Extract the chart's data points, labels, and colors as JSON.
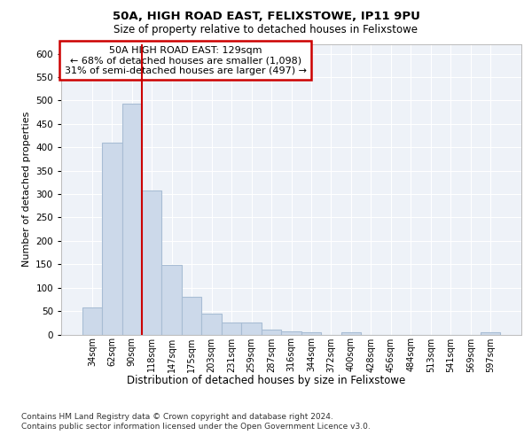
{
  "title1": "50A, HIGH ROAD EAST, FELIXSTOWE, IP11 9PU",
  "title2": "Size of property relative to detached houses in Felixstowe",
  "xlabel": "Distribution of detached houses by size in Felixstowe",
  "ylabel": "Number of detached properties",
  "categories": [
    "34sqm",
    "62sqm",
    "90sqm",
    "118sqm",
    "147sqm",
    "175sqm",
    "203sqm",
    "231sqm",
    "259sqm",
    "287sqm",
    "316sqm",
    "344sqm",
    "372sqm",
    "400sqm",
    "428sqm",
    "456sqm",
    "484sqm",
    "513sqm",
    "541sqm",
    "569sqm",
    "597sqm"
  ],
  "values": [
    57,
    410,
    493,
    307,
    149,
    81,
    44,
    25,
    25,
    11,
    7,
    5,
    0,
    5,
    0,
    0,
    0,
    0,
    0,
    0,
    4
  ],
  "bar_color": "#ccd9ea",
  "bar_edge_color": "#a8bdd4",
  "vline_x_idx": 3,
  "vline_color": "#cc0000",
  "annotation_box_text": "50A HIGH ROAD EAST: 129sqm\n← 68% of detached houses are smaller (1,098)\n31% of semi-detached houses are larger (497) →",
  "annotation_box_color": "#cc0000",
  "ylim": [
    0,
    620
  ],
  "yticks": [
    0,
    50,
    100,
    150,
    200,
    250,
    300,
    350,
    400,
    450,
    500,
    550,
    600
  ],
  "footer1": "Contains HM Land Registry data © Crown copyright and database right 2024.",
  "footer2": "Contains public sector information licensed under the Open Government Licence v3.0.",
  "bg_color": "#eef2f8",
  "grid_color": "#ffffff"
}
